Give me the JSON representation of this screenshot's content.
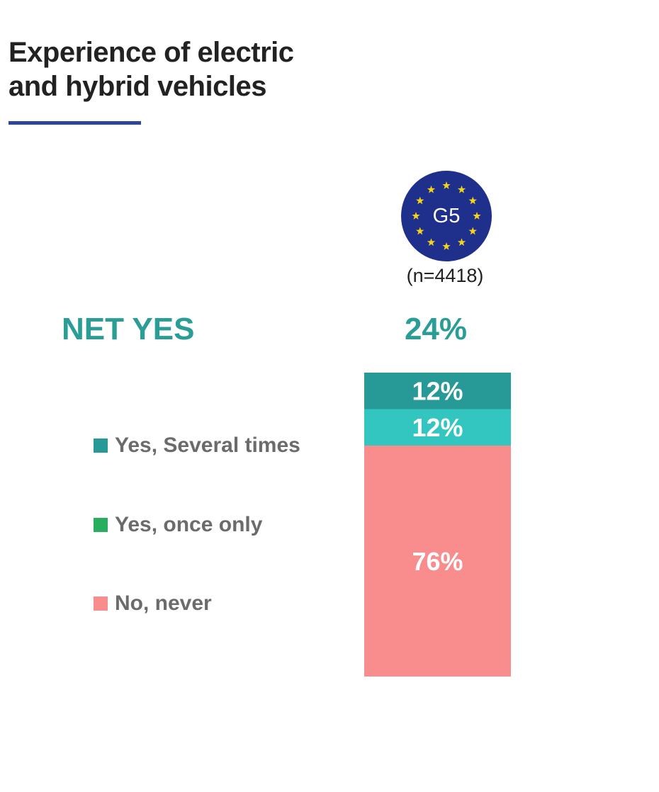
{
  "title": {
    "line1": "Experience of electric",
    "line2": "and hybrid vehicles",
    "rule_color": "#2e4599"
  },
  "badge": {
    "text": "G5",
    "color": "#1f2f8c",
    "star_color": "#f2d51a",
    "icon": "eu-flag-circle-icon"
  },
  "sample_size": "(n=4418)",
  "net": {
    "label": "NET YES",
    "value": "24%",
    "color": "#2a9d96"
  },
  "legend": [
    {
      "label": "Yes, Several times",
      "color": "#279a98"
    },
    {
      "label": "Yes, once only",
      "color": "#27ae5f"
    },
    {
      "label": "No, never",
      "color": "#f98d8d"
    }
  ],
  "chart_data": {
    "type": "bar",
    "stacked": true,
    "categories": [
      "G5"
    ],
    "series": [
      {
        "name": "Yes, Several times",
        "values": [
          12
        ],
        "label": "12%",
        "color": "#279a98"
      },
      {
        "name": "Yes, once only",
        "values": [
          12
        ],
        "label": "12%",
        "color": "#33c6c0"
      },
      {
        "name": "No, never",
        "values": [
          76
        ],
        "label": "76%",
        "color": "#f98d8d"
      }
    ],
    "ylim": [
      0,
      100
    ],
    "title": "Experience of electric and hybrid vehicles",
    "xlabel": "",
    "ylabel": ""
  }
}
